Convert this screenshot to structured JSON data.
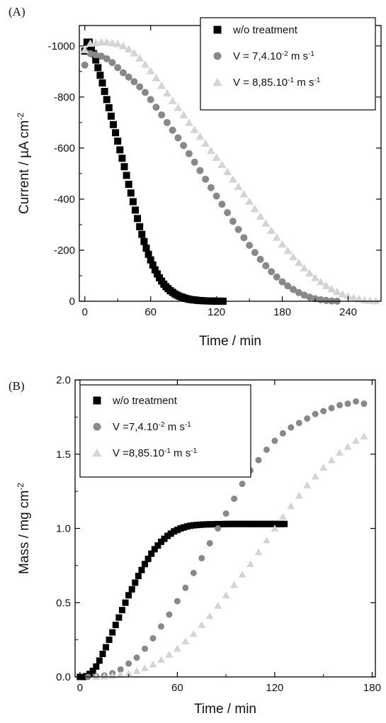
{
  "chart_data": [
    {
      "panel_label": "(A)",
      "type": "scatter",
      "xlabel": "Time / min",
      "ylabel": {
        "main": "Current / µA cm",
        "sup": "-2"
      },
      "xlim": [
        -5,
        270
      ],
      "ylim": [
        0,
        -1080
      ],
      "y_axis_inverted": true,
      "x_ticks": [
        0,
        60,
        120,
        180,
        240
      ],
      "y_ticks": [
        0,
        -200,
        -400,
        -600,
        -800,
        -1000
      ],
      "y_tick_labels": [
        "0",
        "-200",
        "-400",
        "-600",
        "-800",
        "-1000"
      ],
      "legend_position": "top-right",
      "series": [
        {
          "label": "w/o treatment",
          "label_parts": [
            {
              "t": "w/o treatment"
            }
          ],
          "marker": "square",
          "color": "#000000",
          "x": [
            0,
            2,
            4,
            6,
            8,
            10,
            12,
            14,
            16,
            18,
            20,
            22,
            24,
            26,
            28,
            30,
            32,
            34,
            36,
            38,
            40,
            42,
            44,
            46,
            48,
            50,
            52,
            54,
            56,
            58,
            60,
            62,
            64,
            66,
            68,
            70,
            72,
            74,
            76,
            78,
            80,
            82,
            84,
            86,
            88,
            90,
            92,
            94,
            96,
            98,
            100,
            102,
            104,
            106,
            108,
            110,
            112,
            114,
            116,
            118,
            120,
            122,
            124,
            126
          ],
          "y": [
            -980,
            -1015,
            -1015,
            -995,
            -970,
            -945,
            -915,
            -885,
            -855,
            -822,
            -790,
            -758,
            -725,
            -692,
            -660,
            -627,
            -593,
            -560,
            -527,
            -493,
            -458,
            -424,
            -390,
            -357,
            -324,
            -292,
            -262,
            -234,
            -208,
            -184,
            -162,
            -142,
            -123,
            -107,
            -92,
            -79,
            -67,
            -57,
            -49,
            -41,
            -35,
            -29,
            -24,
            -20,
            -17,
            -14,
            -11,
            -9,
            -7,
            -6,
            -5,
            -4,
            -3,
            -2.5,
            -2,
            -1.5,
            -1.2,
            -1,
            -0.8,
            -0.6,
            -0.5,
            -0.4,
            -0.3,
            -0.2
          ]
        },
        {
          "label": "V = 7,4.10-2 m s-1",
          "label_parts": [
            {
              "t": "V = 7,4.10"
            },
            {
              "t": "-2",
              "sup": true
            },
            {
              "t": " m s"
            },
            {
              "t": "-1",
              "sup": true
            }
          ],
          "marker": "circle",
          "color": "#888888",
          "x": [
            0,
            5,
            10,
            15,
            20,
            25,
            30,
            35,
            40,
            45,
            50,
            55,
            60,
            65,
            70,
            75,
            80,
            85,
            90,
            95,
            100,
            105,
            110,
            115,
            120,
            125,
            130,
            135,
            140,
            145,
            150,
            155,
            160,
            165,
            170,
            175,
            180,
            185,
            190,
            195,
            200,
            205,
            210,
            215,
            220,
            225,
            230
          ],
          "y": [
            -925,
            -970,
            -965,
            -960,
            -950,
            -935,
            -915,
            -895,
            -878,
            -860,
            -840,
            -818,
            -790,
            -760,
            -730,
            -700,
            -670,
            -640,
            -610,
            -578,
            -545,
            -512,
            -478,
            -445,
            -412,
            -380,
            -347,
            -313,
            -281,
            -249,
            -219,
            -191,
            -164,
            -139,
            -116,
            -95,
            -76,
            -60,
            -46,
            -34,
            -24,
            -16,
            -10,
            -6,
            -3,
            -1,
            -0.5
          ]
        },
        {
          "label": "V = 8,85.10-1 m s-1",
          "label_parts": [
            {
              "t": "V = 8,85.10"
            },
            {
              "t": "-1",
              "sup": true
            },
            {
              "t": " m s"
            },
            {
              "t": "-1",
              "sup": true
            }
          ],
          "marker": "triangle",
          "color": "#d4d4d4",
          "x": [
            0,
            5,
            10,
            15,
            20,
            25,
            30,
            35,
            40,
            45,
            50,
            55,
            60,
            65,
            70,
            75,
            80,
            85,
            90,
            95,
            100,
            105,
            110,
            115,
            120,
            125,
            130,
            135,
            140,
            145,
            150,
            155,
            160,
            165,
            170,
            175,
            180,
            185,
            190,
            195,
            200,
            205,
            210,
            215,
            220,
            225,
            230,
            235,
            240,
            245,
            250,
            255,
            260,
            265
          ],
          "y": [
            -985,
            -1010,
            -1012,
            -1015,
            -1015,
            -1012,
            -1008,
            -1000,
            -988,
            -972,
            -952,
            -928,
            -902,
            -875,
            -845,
            -815,
            -785,
            -758,
            -730,
            -700,
            -672,
            -645,
            -618,
            -590,
            -563,
            -535,
            -507,
            -478,
            -449,
            -420,
            -391,
            -362,
            -333,
            -305,
            -277,
            -250,
            -223,
            -198,
            -174,
            -151,
            -130,
            -110,
            -92,
            -76,
            -61,
            -48,
            -37,
            -28,
            -20,
            -14,
            -9,
            -5,
            -3,
            -1
          ]
        }
      ]
    },
    {
      "panel_label": "(B)",
      "type": "scatter",
      "xlabel": "Time / min",
      "ylabel": {
        "main": "Mass / mg cm",
        "sup": "-2"
      },
      "xlim": [
        -3,
        182
      ],
      "ylim": [
        0,
        2.0
      ],
      "y_axis_inverted": false,
      "x_ticks": [
        0,
        60,
        120,
        180
      ],
      "y_ticks": [
        0.0,
        0.5,
        1.0,
        1.5,
        2.0
      ],
      "y_tick_labels": [
        "0.0",
        "0.5",
        "1.0",
        "1.5",
        "2.0"
      ],
      "legend_position": "top-left",
      "series": [
        {
          "label": "w/o treatment",
          "label_parts": [
            {
              "t": "w/o treatment"
            }
          ],
          "marker": "square",
          "color": "#000000",
          "x": [
            0,
            2,
            4,
            6,
            8,
            10,
            12,
            14,
            16,
            18,
            20,
            22,
            24,
            26,
            28,
            30,
            32,
            34,
            36,
            38,
            40,
            42,
            44,
            46,
            48,
            50,
            52,
            54,
            56,
            58,
            60,
            62,
            64,
            66,
            68,
            70,
            72,
            74,
            76,
            78,
            80,
            82,
            84,
            86,
            88,
            90,
            92,
            94,
            96,
            98,
            100,
            102,
            104,
            106,
            108,
            110,
            112,
            114,
            116,
            118,
            120,
            122,
            124,
            126
          ],
          "y": [
            0,
            0,
            0.005,
            0.02,
            0.04,
            0.07,
            0.11,
            0.155,
            0.2,
            0.25,
            0.3,
            0.35,
            0.4,
            0.45,
            0.5,
            0.55,
            0.59,
            0.635,
            0.68,
            0.72,
            0.76,
            0.795,
            0.83,
            0.86,
            0.885,
            0.91,
            0.93,
            0.95,
            0.965,
            0.98,
            0.99,
            1.0,
            1.007,
            1.013,
            1.018,
            1.021,
            1.023,
            1.025,
            1.026,
            1.027,
            1.028,
            1.028,
            1.029,
            1.029,
            1.029,
            1.03,
            1.03,
            1.03,
            1.03,
            1.03,
            1.03,
            1.03,
            1.03,
            1.03,
            1.03,
            1.03,
            1.03,
            1.03,
            1.03,
            1.03,
            1.03,
            1.03,
            1.03,
            1.03
          ]
        },
        {
          "label": "V =7,4.10-2 m s-1",
          "label_parts": [
            {
              "t": "V =7,4.10"
            },
            {
              "t": "-2",
              "sup": true
            },
            {
              "t": " m s"
            },
            {
              "t": "-1",
              "sup": true
            }
          ],
          "marker": "circle",
          "color": "#888888",
          "x": [
            5,
            10,
            15,
            20,
            25,
            30,
            35,
            40,
            45,
            50,
            55,
            60,
            65,
            70,
            75,
            80,
            85,
            90,
            95,
            100,
            105,
            110,
            115,
            120,
            125,
            130,
            135,
            140,
            145,
            150,
            155,
            160,
            165,
            170,
            175
          ],
          "y": [
            0,
            0.005,
            0.01,
            0.025,
            0.05,
            0.09,
            0.13,
            0.19,
            0.26,
            0.34,
            0.42,
            0.51,
            0.6,
            0.7,
            0.8,
            0.9,
            1.0,
            1.1,
            1.2,
            1.3,
            1.39,
            1.46,
            1.53,
            1.59,
            1.64,
            1.68,
            1.71,
            1.74,
            1.77,
            1.79,
            1.81,
            1.83,
            1.84,
            1.855,
            1.84
          ]
        },
        {
          "label": "V =8,85.10-1 m s-1",
          "label_parts": [
            {
              "t": "V =8,85.10"
            },
            {
              "t": "-1",
              "sup": true
            },
            {
              "t": " m s"
            },
            {
              "t": "-1",
              "sup": true
            }
          ],
          "marker": "triangle",
          "color": "#d4d4d4",
          "x": [
            10,
            15,
            20,
            25,
            30,
            35,
            40,
            45,
            50,
            55,
            60,
            65,
            70,
            75,
            80,
            85,
            90,
            95,
            100,
            105,
            110,
            115,
            120,
            125,
            130,
            135,
            140,
            145,
            150,
            155,
            160,
            165,
            170,
            175
          ],
          "y": [
            0,
            0.003,
            0.008,
            0.015,
            0.025,
            0.04,
            0.06,
            0.085,
            0.115,
            0.15,
            0.19,
            0.24,
            0.29,
            0.35,
            0.41,
            0.48,
            0.55,
            0.62,
            0.69,
            0.76,
            0.84,
            0.92,
            1.0,
            1.08,
            1.15,
            1.22,
            1.29,
            1.35,
            1.41,
            1.46,
            1.51,
            1.55,
            1.59,
            1.62
          ]
        }
      ]
    }
  ]
}
